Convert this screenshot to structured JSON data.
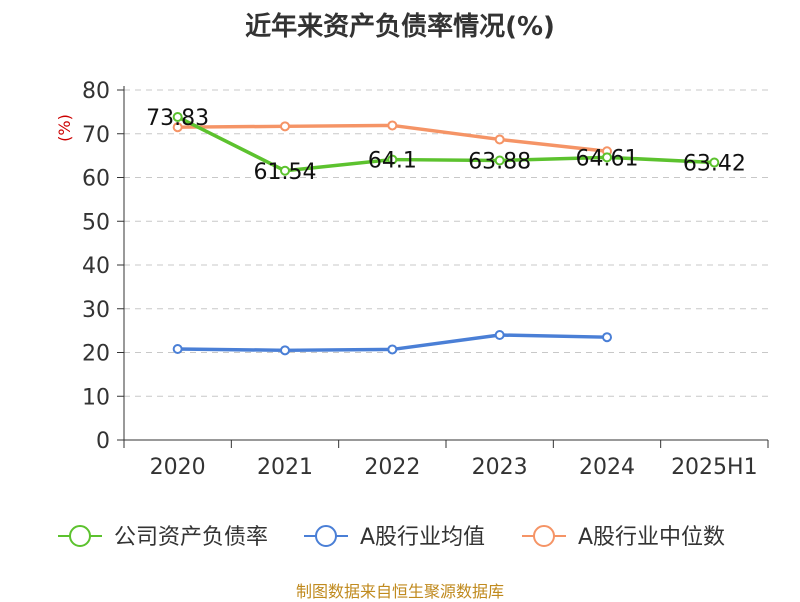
{
  "chart_data": {
    "type": "line",
    "title": "近年来资产负债率情况(%)",
    "ylabel": "(%)",
    "xlabel": "",
    "categories": [
      "2020",
      "2021",
      "2022",
      "2023",
      "2024",
      "2025H1"
    ],
    "ylim": [
      0,
      80
    ],
    "yticks": [
      "0",
      "10",
      "20",
      "30",
      "40",
      "50",
      "60",
      "70",
      "80"
    ],
    "grid": true,
    "legend_position": "bottom",
    "series": [
      {
        "name": "公司资产负债率",
        "color": "#5cc22e",
        "values": [
          73.83,
          61.54,
          64.1,
          63.88,
          64.61,
          63.42
        ],
        "labels": [
          "73.83",
          "61.54",
          "64.1",
          "63.88",
          "64.61",
          "63.42"
        ]
      },
      {
        "name": "A股行业均值",
        "color": "#4a7fd6",
        "values": [
          20.8,
          20.5,
          20.7,
          24.0,
          23.5,
          null
        ]
      },
      {
        "name": "A股行业中位数",
        "color": "#f59466",
        "values": [
          71.5,
          71.7,
          71.9,
          68.7,
          66.0,
          null
        ]
      }
    ]
  },
  "source": "制图数据来自恒生聚源数据库"
}
